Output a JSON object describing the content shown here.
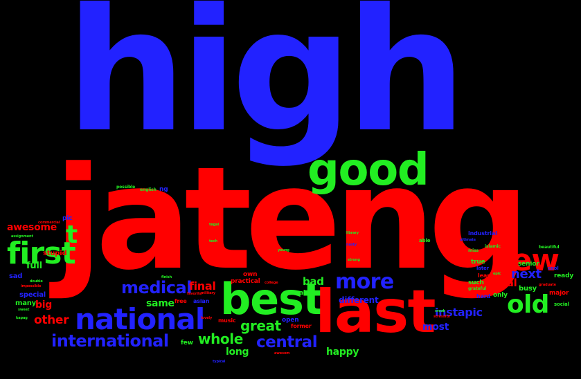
{
  "palette": {
    "background": "#000000",
    "red": "#ff0000",
    "green": "#22ee22",
    "blue": "#2222ff"
  },
  "words": {
    "high": "high",
    "jateng": "jateng",
    "good": "good",
    "best": "best",
    "last": "last",
    "national": "national",
    "first": "first",
    "new": "new",
    "old": "old",
    "more": "more",
    "medical": "medical",
    "international": "international",
    "central": "central",
    "whole": "whole",
    "great": "great",
    "t": "t",
    "awesome": "awesome",
    "other": "other",
    "next": "next",
    "instapic": "instapic",
    "aaral": "aaral",
    "final": "final",
    "same": "same",
    "bad": "bad",
    "big": "big",
    "full": "full",
    "happy": "happy",
    "long": "long",
    "most": "most",
    "different": "different",
    "stupid": "stupid",
    "sad": "sad",
    "special": "special",
    "many": "many",
    "pic": "pic",
    "few": "few",
    "own": "own",
    "practical": "practical",
    "asian": "asian",
    "free": "free",
    "aral": "aral",
    "open": "open",
    "former": "former",
    "music": "music",
    "busy": "busy",
    "senior": "senior",
    "major": "major",
    "ready": "ready",
    "cool": "cool",
    "social": "social",
    "true": "true",
    "such": "such",
    "only": "only",
    "hard": "hard",
    "least": "least",
    "later": "later",
    "industrial": "industrial",
    "islamic": "islamic",
    "miss": "miss",
    "grateful": "grateful",
    "beautiful": "beautiful",
    "dead": "dead",
    "ultimate": "ultimate",
    "ng": "ng",
    "english": "english",
    "possible": "possible",
    "kung": "kung",
    "tegal": "tegal",
    "tech": "tech",
    "library": "library",
    "d": "d",
    "college": "college",
    "dental": "dental",
    "strong": "strong",
    "epic": "epic",
    "graduate": "graduate",
    "assignment": "assignment",
    "double": "double",
    "sweet": "sweet",
    "kapag": "kapag",
    "favorite": "favorite",
    "military": "military",
    "finish": "finish",
    "commercial": "commercial",
    "impossible": "impossible",
    "typical": "typical",
    "young": "young",
    "stressful": "stressful",
    "lovely": "lovely",
    "awesom": "awesom",
    "able": "able",
    "nasty": "nasty",
    "crush": "crush"
  }
}
